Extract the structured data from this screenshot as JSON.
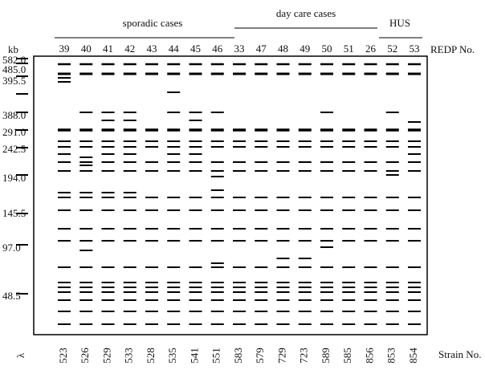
{
  "groups": [
    {
      "label": "sporadic cases"
    },
    {
      "label": "day care cases"
    },
    {
      "label": "HUS"
    }
  ],
  "size_unit": "kb",
  "size_markers": [
    "582.0",
    "485.0",
    "395.5",
    "388.0",
    "291.0",
    "242.5",
    "194.0",
    "145.5",
    "97.0",
    "48.5"
  ],
  "lane_header": "REDP No.",
  "marker_lane": "λ",
  "strain_header": "Strain No.",
  "lanes": [
    {
      "redp": "39",
      "strain": "523"
    },
    {
      "redp": "40",
      "strain": "526"
    },
    {
      "redp": "41",
      "strain": "529"
    },
    {
      "redp": "42",
      "strain": "533"
    },
    {
      "redp": "43",
      "strain": "528"
    },
    {
      "redp": "44",
      "strain": "535"
    },
    {
      "redp": "45",
      "strain": "541"
    },
    {
      "redp": "46",
      "strain": "551"
    },
    {
      "redp": "33",
      "strain": "583"
    },
    {
      "redp": "47",
      "strain": "579"
    },
    {
      "redp": "48",
      "strain": "729"
    },
    {
      "redp": "49",
      "strain": "723"
    },
    {
      "redp": "50",
      "strain": "589"
    },
    {
      "redp": "51",
      "strain": "585"
    },
    {
      "redp": "26",
      "strain": "856"
    },
    {
      "redp": "52",
      "strain": "853"
    },
    {
      "redp": "53",
      "strain": "854"
    }
  ]
}
